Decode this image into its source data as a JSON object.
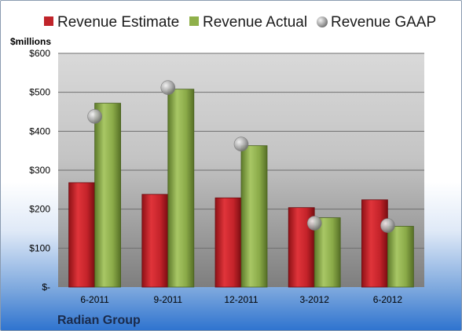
{
  "chart_data": {
    "type": "bar",
    "unit_label": "$millions",
    "company": "Radian Group",
    "categories": [
      "6-2011",
      "9-2011",
      "12-2011",
      "3-2012",
      "6-2012"
    ],
    "series": [
      {
        "name": "Revenue Estimate",
        "kind": "bar",
        "color": "#c0242a",
        "values": [
          268,
          238,
          229,
          204,
          224
        ]
      },
      {
        "name": "Revenue Actual",
        "kind": "bar",
        "color": "#8fb04a",
        "values": [
          472,
          508,
          363,
          178,
          156
        ]
      },
      {
        "name": "Revenue GAAP",
        "kind": "marker",
        "color": "#9a9a9a",
        "values": [
          438,
          512,
          367,
          164,
          158
        ]
      }
    ],
    "y_ticks": [
      {
        "value": 0,
        "label": "$-"
      },
      {
        "value": 100,
        "label": "$100"
      },
      {
        "value": 200,
        "label": "$200"
      },
      {
        "value": 300,
        "label": "$300"
      },
      {
        "value": 400,
        "label": "$400"
      },
      {
        "value": 500,
        "label": "$500"
      },
      {
        "value": 600,
        "label": "$600"
      }
    ],
    "ylim": [
      0,
      600
    ],
    "grid": true,
    "legend_position": "top"
  }
}
